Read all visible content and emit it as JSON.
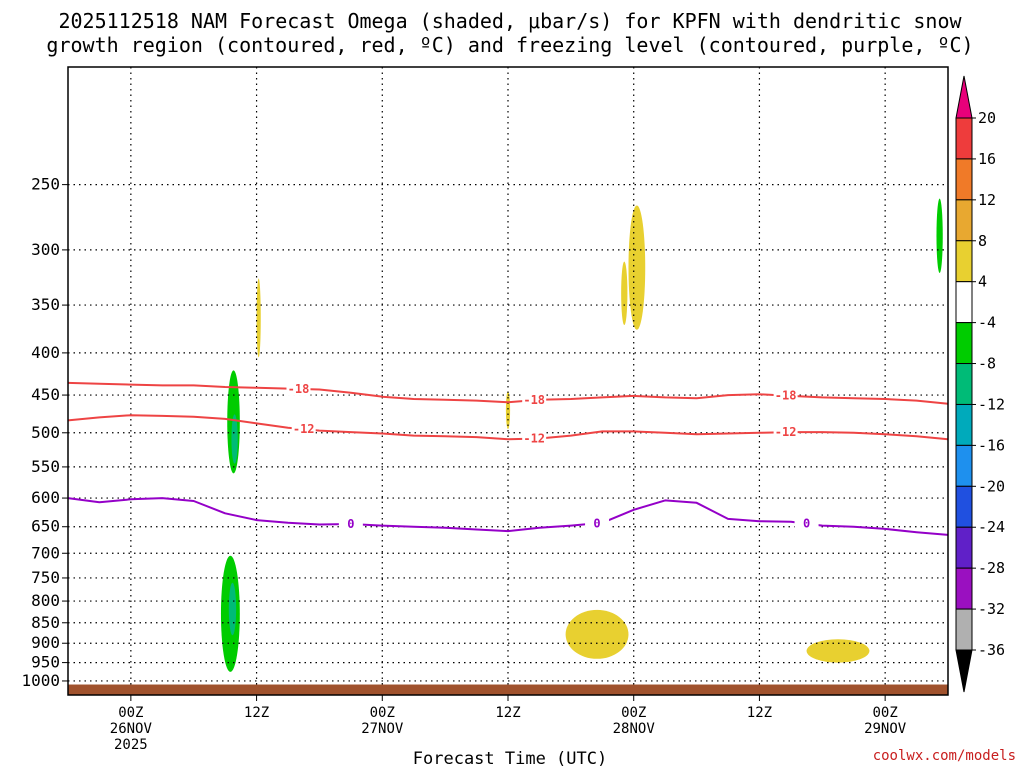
{
  "chart_data": {
    "type": "heatmap",
    "title": [
      "2025112518 NAM Forecast Omega (shaded, μbar/s) for KPFN with dendritic snow",
      "growth region (contoured, red, ºC) and freezing level (contoured, purple, ºC)"
    ],
    "xlabel": "Forecast Time (UTC)",
    "ylabel": "",
    "x_unit": "hours since 2025-11-25 18Z",
    "xlim": [
      0,
      84
    ],
    "y_unit": "hPa",
    "ylim": [
      1040,
      180
    ],
    "yticks": [
      250,
      300,
      350,
      400,
      450,
      500,
      550,
      600,
      650,
      700,
      750,
      800,
      850,
      900,
      950,
      1000
    ],
    "xticks": [
      {
        "x": 6,
        "lines": [
          "00Z",
          "26NOV",
          "2025"
        ]
      },
      {
        "x": 18,
        "lines": [
          "12Z"
        ]
      },
      {
        "x": 30,
        "lines": [
          "00Z",
          "27NOV"
        ]
      },
      {
        "x": 42,
        "lines": [
          "12Z"
        ]
      },
      {
        "x": 54,
        "lines": [
          "00Z",
          "28NOV"
        ]
      },
      {
        "x": 66,
        "lines": [
          "12Z"
        ]
      },
      {
        "x": 78,
        "lines": [
          "00Z",
          "29NOV"
        ]
      }
    ],
    "colorbar": {
      "labels": [
        "20",
        "16",
        "12",
        "8",
        "4",
        "-4",
        "-8",
        "-12",
        "-16",
        "-20",
        "-24",
        "-28",
        "-32",
        "-36"
      ],
      "colors": [
        "#ee3c3c",
        "#f07a28",
        "#e8a830",
        "#e8d030",
        "#ffffff",
        "#00cc00",
        "#00bb77",
        "#00aabb",
        "#1e90ee",
        "#2050e0",
        "#6020c8",
        "#9a10c0",
        "#b0b0b0"
      ],
      "top_arrow_color": "#e8007a",
      "bottom_arrow_color": "#000000"
    },
    "series": [
      {
        "name": "-18",
        "color": "#ee4444",
        "x": [
          0,
          3,
          6,
          9,
          12,
          15,
          18,
          21,
          24,
          27,
          30,
          33,
          36,
          39,
          42,
          45,
          48,
          51,
          54,
          57,
          60,
          63,
          66,
          69,
          72,
          75,
          78,
          81,
          84
        ],
        "y": [
          435,
          436,
          437,
          438,
          438,
          440,
          441,
          442,
          443,
          447,
          452,
          455,
          456,
          457,
          459,
          456,
          455,
          453,
          451,
          453,
          454,
          450,
          449,
          451,
          453,
          454,
          455,
          457,
          461
        ],
        "label_x": [
          22,
          44.5,
          68.5
        ]
      },
      {
        "name": "-12",
        "color": "#ee4444",
        "x": [
          0,
          3,
          6,
          9,
          12,
          15,
          18,
          21,
          24,
          27,
          30,
          33,
          36,
          39,
          42,
          45,
          48,
          51,
          54,
          57,
          60,
          63,
          66,
          69,
          72,
          75,
          78,
          81,
          84
        ],
        "y": [
          483,
          479,
          476,
          477,
          478,
          481,
          487,
          493,
          497,
          499,
          501,
          504,
          505,
          506,
          509,
          508,
          504,
          498,
          498,
          500,
          502,
          501,
          500,
          499,
          499,
          500,
          502,
          505,
          509
        ],
        "label_x": [
          22.5,
          44.5,
          68.5
        ]
      },
      {
        "name": "0",
        "color": "#9400c8",
        "x": [
          0,
          3,
          6,
          9,
          12,
          15,
          18,
          21,
          24,
          27,
          30,
          33,
          36,
          39,
          42,
          45,
          48,
          51,
          54,
          57,
          60,
          63,
          66,
          69,
          72,
          75,
          78,
          81,
          84
        ],
        "y": [
          600,
          607,
          602,
          600,
          605,
          626,
          638,
          643,
          646,
          645,
          648,
          650,
          652,
          655,
          658,
          652,
          648,
          643,
          620,
          604,
          608,
          636,
          640,
          641,
          648,
          650,
          654,
          660,
          665
        ],
        "label_x": [
          27,
          50.5,
          70.5
        ]
      }
    ],
    "omega_regions": [
      {
        "value": -6,
        "center": [
          15.8,
          490
        ],
        "width": 1.2,
        "height": 140
      },
      {
        "value": -6,
        "center": [
          15.5,
          840
        ],
        "width": 1.8,
        "height": 270
      },
      {
        "value": -10,
        "center": [
          15.9,
          510
        ],
        "width": 0.6,
        "height": 70
      },
      {
        "value": -10,
        "center": [
          15.7,
          820
        ],
        "width": 0.7,
        "height": 120
      },
      {
        "value": -6,
        "center": [
          83.2,
          290
        ],
        "width": 0.6,
        "height": 60
      },
      {
        "value": 5,
        "center": [
          18.2,
          365
        ],
        "width": 0.4,
        "height": 80
      },
      {
        "value": 5,
        "center": [
          53.1,
          340
        ],
        "width": 0.6,
        "height": 60
      },
      {
        "value": 5,
        "center": [
          54.3,
          320
        ],
        "width": 1.6,
        "height": 110
      },
      {
        "value": 5,
        "center": [
          42,
          470
        ],
        "width": 0.4,
        "height": 50
      },
      {
        "value": 5,
        "center": [
          50.5,
          880
        ],
        "width": 6,
        "height": 120
      },
      {
        "value": 5,
        "center": [
          73.5,
          920
        ],
        "width": 6,
        "height": 60
      }
    ],
    "terrain_surface_hPa": 1010
  },
  "credit": "coolwx.com/models"
}
